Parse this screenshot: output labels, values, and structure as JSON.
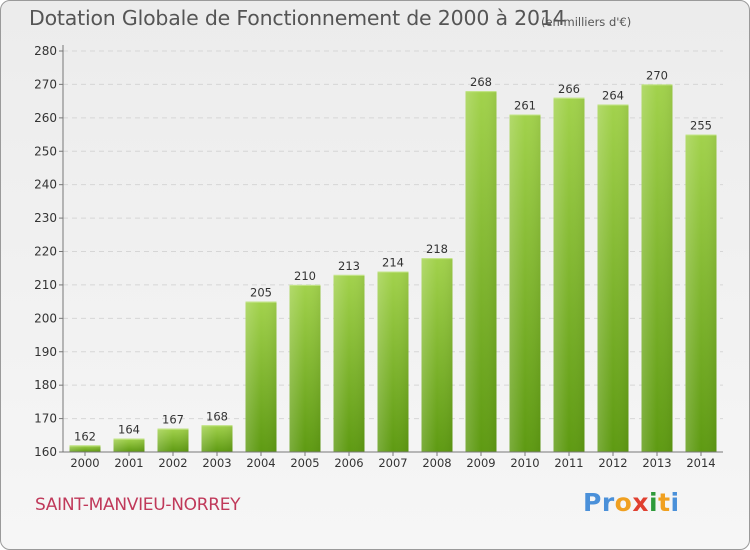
{
  "header": {
    "title": "Dotation Globale de Fonctionnement de 2000 à 2014",
    "subtitle": "(en milliers d'€)"
  },
  "footer": {
    "commune": "SAINT-MANVIEU-NORREY",
    "logo": [
      "P",
      "r",
      "o",
      "x",
      "i",
      "t",
      "i"
    ],
    "logo_colors": [
      "#4a90d9",
      "#4a90d9",
      "#f0a020",
      "#e04030",
      "#2e9a3a",
      "#f0a020",
      "#4a90d9"
    ]
  },
  "chart_data": {
    "type": "bar",
    "title": "Dotation Globale de Fonctionnement de 2000 à 2014",
    "subtitle": "(en milliers d'€)",
    "categories": [
      "2000",
      "2001",
      "2002",
      "2003",
      "2004",
      "2005",
      "2006",
      "2007",
      "2008",
      "2009",
      "2010",
      "2011",
      "2012",
      "2013",
      "2014"
    ],
    "values": [
      162,
      164,
      167,
      168,
      205,
      210,
      213,
      214,
      218,
      268,
      261,
      266,
      264,
      270,
      255
    ],
    "ylim": [
      160,
      280
    ],
    "yticks": [
      160,
      170,
      180,
      190,
      200,
      210,
      220,
      230,
      240,
      250,
      260,
      270,
      280
    ],
    "grid": true,
    "bar_color_top": "#a2d24c",
    "bar_color_bottom": "#5e9a12"
  }
}
